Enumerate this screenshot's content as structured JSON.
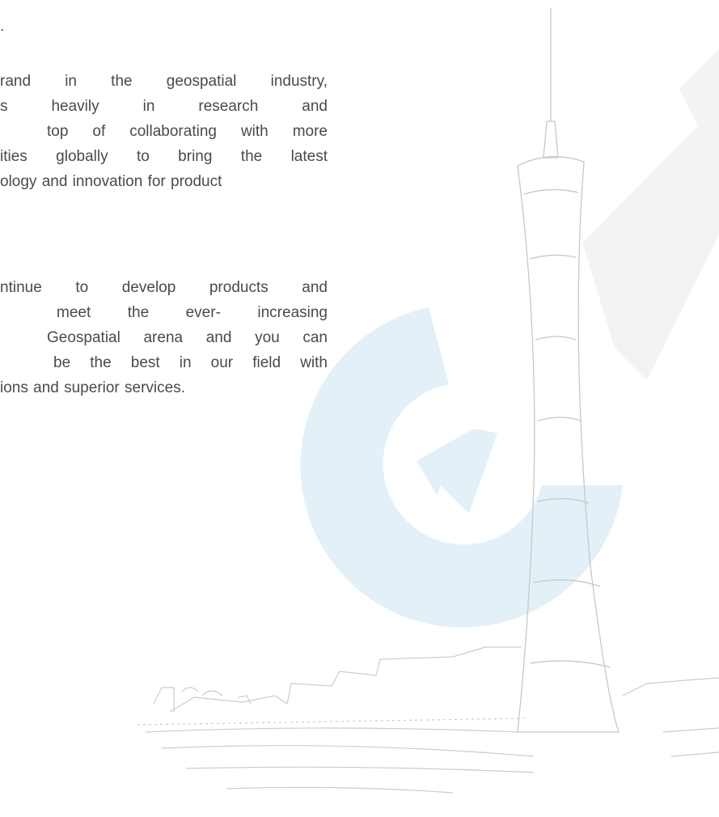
{
  "top_mark": ".",
  "paragraphs": [
    {
      "lines": [
        "rand in the geospatial industry,",
        "s heavily in research and",
        "top of collaborating with more",
        "ities globally to bring the latest",
        "ology and innovation for product"
      ]
    },
    {
      "lines": [
        "ntinue to develop products and",
        "meet the ever- increasing",
        "Geospatial arena and you can",
        "be the best in our field with",
        "ions and superior services."
      ]
    }
  ]
}
